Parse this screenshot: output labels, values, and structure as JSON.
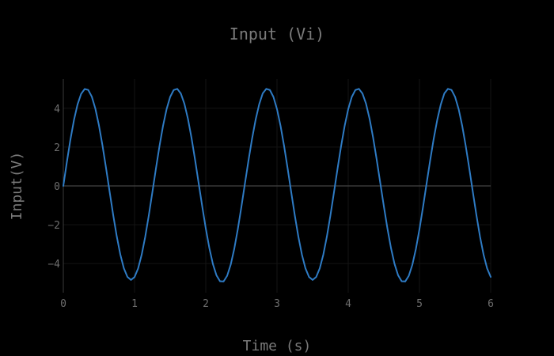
{
  "chart_data": {
    "type": "line",
    "title": "Input (Vi)",
    "xlabel": "Time (s)",
    "ylabel": "Input(V)",
    "xlim": [
      0,
      6
    ],
    "ylim": [
      -5.5,
      5.5
    ],
    "x_ticks": [
      "0",
      "1",
      "2",
      "3",
      "4",
      "5",
      "6"
    ],
    "y_ticks": [
      "−4",
      "−2",
      "0",
      "2",
      "4"
    ],
    "grid": true,
    "background": "#000000",
    "series": [
      {
        "color": "#2e7bc4",
        "x": [
          0,
          0.05,
          0.1,
          0.15,
          0.2,
          0.25,
          0.3,
          0.35,
          0.4,
          0.45,
          0.5,
          0.55,
          0.6,
          0.65,
          0.7,
          0.75,
          0.8,
          0.85,
          0.9,
          0.95,
          1.0,
          1.05,
          1.1,
          1.15,
          1.2,
          1.25,
          1.3,
          1.35,
          1.4,
          1.45,
          1.5,
          1.55,
          1.6,
          1.65,
          1.7,
          1.75,
          1.8,
          1.85,
          1.9,
          1.95,
          2.0,
          2.05,
          2.1,
          2.15,
          2.2,
          2.25,
          2.3,
          2.35,
          2.4,
          2.45,
          2.5,
          2.55,
          2.6,
          2.65,
          2.7,
          2.75,
          2.8,
          2.85,
          2.9,
          2.95,
          3.0,
          3.05,
          3.1,
          3.15,
          3.2,
          3.25,
          3.3,
          3.35,
          3.4,
          3.45,
          3.5,
          3.55,
          3.6,
          3.65,
          3.7,
          3.75,
          3.8,
          3.85,
          3.9,
          3.95,
          4.0,
          4.05,
          4.1,
          4.15,
          4.2,
          4.25,
          4.3,
          4.35,
          4.4,
          4.45,
          4.5,
          4.55,
          4.6,
          4.65,
          4.7,
          4.75,
          4.8,
          4.85,
          4.9,
          4.95,
          5.0,
          5.05,
          5.1,
          5.15,
          5.2,
          5.25,
          5.3,
          5.35,
          5.4,
          5.45,
          5.5,
          5.55,
          5.6,
          5.65,
          5.7,
          5.75,
          5.8,
          5.85,
          5.9,
          5.95,
          6.0
        ],
        "y": [
          0.0,
          1.235,
          2.393,
          3.401,
          4.198,
          4.738,
          4.99,
          4.942,
          4.597,
          3.977,
          3.121,
          2.081,
          0.92,
          -0.294,
          -1.49,
          -2.592,
          -3.528,
          -4.24,
          -4.686,
          -4.84,
          -4.693,
          -4.253,
          -3.547,
          -2.618,
          -1.522,
          -0.33,
          0.886,
          2.048,
          3.093,
          3.955,
          4.583,
          4.939,
          4.998,
          4.756,
          4.23,
          3.45,
          2.466,
          1.341,
          0.144,
          -1.05,
          -2.186,
          -3.197,
          -4.02,
          -4.603,
          -4.909,
          -4.919,
          -4.629,
          -4.058,
          -3.239,
          -2.225,
          -1.08,
          0.126,
          1.317,
          2.432,
          3.411,
          4.204,
          4.768,
          5.0,
          4.94,
          4.583,
          3.953,
          3.09,
          2.045,
          0.883,
          -0.331,
          -1.52,
          -2.614,
          -3.543,
          -4.25,
          -4.69,
          -4.84,
          -4.691,
          -4.249,
          -3.542,
          -2.612,
          -1.518,
          -0.327,
          0.888,
          2.05,
          3.094,
          3.955,
          4.583,
          4.938,
          4.998,
          4.757,
          4.233,
          3.454,
          2.47,
          1.346,
          0.148,
          -1.046,
          -2.181,
          -3.193,
          -4.017,
          -4.601,
          -4.91,
          -4.921,
          -4.633,
          -4.064,
          -3.246,
          -2.233,
          -1.088,
          0.119,
          1.309,
          2.426,
          3.406,
          4.201,
          4.767,
          5.0,
          4.942,
          4.586,
          3.958,
          3.097,
          2.052,
          0.89,
          -0.323,
          -1.513,
          -2.608,
          -3.538,
          -4.246,
          -4.686
        ]
      }
    ]
  }
}
